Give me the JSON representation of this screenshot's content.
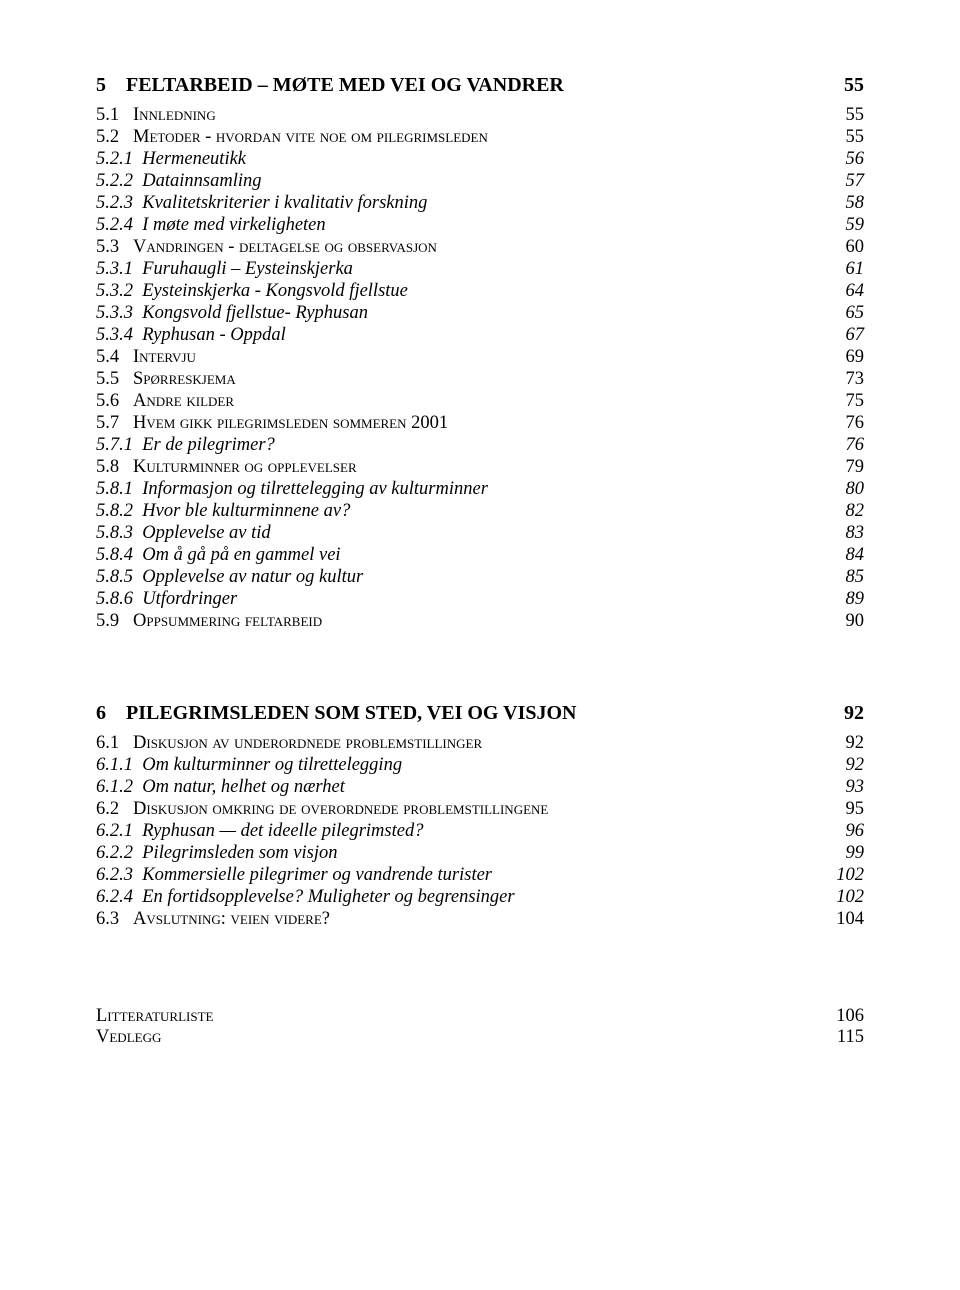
{
  "chapters": [
    {
      "num": "5",
      "title": "FELTARBEID – MØTE MED VEI OG VANDRER",
      "page": "55",
      "items": [
        {
          "type": "section",
          "num": "5.1",
          "label": "Innledning",
          "page": "55"
        },
        {
          "type": "section",
          "num": "5.2",
          "label": "Metoder - hvordan vite noe om pilegrimsleden",
          "page": "55"
        },
        {
          "type": "subsection",
          "num": "5.2.1",
          "label": "Hermeneutikk",
          "page": "56"
        },
        {
          "type": "subsection",
          "num": "5.2.2",
          "label": "Datainnsamling",
          "page": "57"
        },
        {
          "type": "subsection",
          "num": "5.2.3",
          "label": "Kvalitetskriterier i kvalitativ forskning",
          "page": "58"
        },
        {
          "type": "subsection",
          "num": "5.2.4",
          "label": "I møte med virkeligheten",
          "page": "59"
        },
        {
          "type": "section",
          "num": "5.3",
          "label": "Vandringen - deltagelse og observasjon",
          "page": "60"
        },
        {
          "type": "subsection",
          "num": "5.3.1",
          "label": "Furuhaugli – Eysteinskjerka",
          "page": "61"
        },
        {
          "type": "subsection",
          "num": "5.3.2",
          "label": "Eysteinskjerka - Kongsvold fjellstue",
          "page": "64"
        },
        {
          "type": "subsection",
          "num": "5.3.3",
          "label": "Kongsvold fjellstue- Ryphusan",
          "page": "65"
        },
        {
          "type": "subsection",
          "num": "5.3.4",
          "label": "Ryphusan - Oppdal",
          "page": "67"
        },
        {
          "type": "section",
          "num": "5.4",
          "label": "Intervju",
          "page": "69"
        },
        {
          "type": "section",
          "num": "5.5",
          "label": "Spørreskjema",
          "page": "73"
        },
        {
          "type": "section",
          "num": "5.6",
          "label": "Andre kilder",
          "page": "75"
        },
        {
          "type": "section",
          "num": "5.7",
          "label": "Hvem gikk pilegrimsleden sommeren 2001",
          "page": "76"
        },
        {
          "type": "subsection",
          "num": "5.7.1",
          "label": "Er de pilegrimer?",
          "page": "76"
        },
        {
          "type": "section",
          "num": "5.8",
          "label": "Kulturminner og opplevelser",
          "page": "79"
        },
        {
          "type": "subsection",
          "num": "5.8.1",
          "label": "Informasjon og tilrettelegging av kulturminner",
          "page": "80"
        },
        {
          "type": "subsection",
          "num": "5.8.2",
          "label": "Hvor ble kulturminnene av?",
          "page": "82"
        },
        {
          "type": "subsection",
          "num": "5.8.3",
          "label": "Opplevelse av tid",
          "page": "83"
        },
        {
          "type": "subsection",
          "num": "5.8.4",
          "label": "Om å gå på en gammel vei",
          "page": "84"
        },
        {
          "type": "subsection",
          "num": "5.8.5",
          "label": "Opplevelse av natur og kultur",
          "page": "85"
        },
        {
          "type": "subsection",
          "num": "5.8.6",
          "label": "Utfordringer",
          "page": "89"
        },
        {
          "type": "section",
          "num": "5.9",
          "label": "Oppsummering feltarbeid",
          "page": "90"
        }
      ]
    },
    {
      "num": "6",
      "title": "PILEGRIMSLEDEN SOM STED, VEI OG VISJON",
      "page": "92",
      "items": [
        {
          "type": "section",
          "num": "6.1",
          "label": "Diskusjon av underordnede problemstillinger",
          "page": "92"
        },
        {
          "type": "subsection",
          "num": "6.1.1",
          "label": "Om kulturminner og tilrettelegging",
          "page": "92"
        },
        {
          "type": "subsection",
          "num": "6.1.2",
          "label": "Om natur, helhet og nærhet",
          "page": "93"
        },
        {
          "type": "section",
          "num": "6.2",
          "label": "Diskusjon omkring de overordnede problemstillingene",
          "page": "95"
        },
        {
          "type": "subsection",
          "num": "6.2.1",
          "label": "Ryphusan — det ideelle pilegrimsted?",
          "page": "96"
        },
        {
          "type": "subsection",
          "num": "6.2.2",
          "label": "Pilegrimsleden som visjon",
          "page": "99"
        },
        {
          "type": "subsection",
          "num": "6.2.3",
          "label": "Kommersielle pilegrimer og vandrende turister",
          "page": "102"
        },
        {
          "type": "subsection",
          "num": "6.2.4",
          "label": "En fortidsopplevelse?  Muligheter og begrensinger",
          "page": "102"
        },
        {
          "type": "section",
          "num": "6.3",
          "label": "Avslutning: veien videre?",
          "page": "104"
        }
      ]
    }
  ],
  "back": [
    {
      "label": "Litteraturliste",
      "page": "106"
    },
    {
      "label": "Vedlegg",
      "page": "115"
    }
  ]
}
